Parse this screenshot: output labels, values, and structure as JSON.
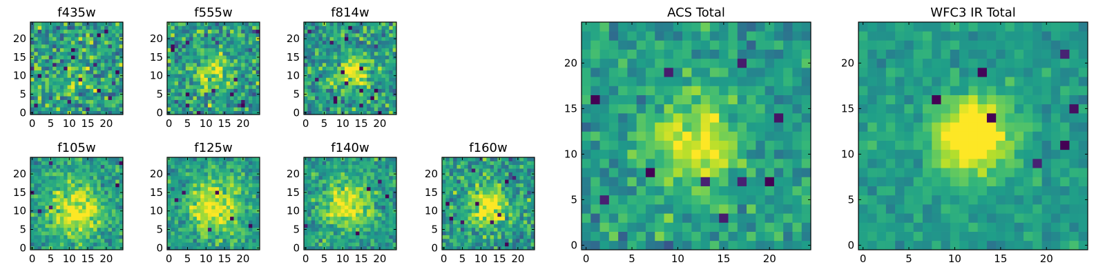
{
  "chart_data": [
    {
      "type": "heatmap",
      "title": "f435w",
      "xticks": [
        0,
        5,
        10,
        15,
        20
      ],
      "yticks": [
        0,
        5,
        10,
        15,
        20
      ],
      "xlim": [
        -0.5,
        24.5
      ],
      "ylim": [
        -0.5,
        24.5
      ],
      "seed": 11,
      "noise": 0.95,
      "blob": {
        "x": 12,
        "y": 11,
        "sigma": 4.5,
        "amp": 0.25
      },
      "dark_dots": 14,
      "colormap": "viridis"
    },
    {
      "type": "heatmap",
      "title": "f555w",
      "xticks": [
        0,
        5,
        10,
        15,
        20
      ],
      "yticks": [
        0,
        5,
        10,
        15,
        20
      ],
      "xlim": [
        -0.5,
        24.5
      ],
      "ylim": [
        -0.5,
        24.5
      ],
      "seed": 23,
      "noise": 0.85,
      "blob": {
        "x": 12,
        "y": 11,
        "sigma": 3.5,
        "amp": 0.7
      },
      "dark_dots": 12,
      "colormap": "viridis"
    },
    {
      "type": "heatmap",
      "title": "f814w",
      "xticks": [
        0,
        5,
        10,
        15,
        20
      ],
      "yticks": [
        0,
        5,
        10,
        15,
        20
      ],
      "xlim": [
        -0.5,
        24.5
      ],
      "ylim": [
        -0.5,
        24.5
      ],
      "seed": 37,
      "noise": 0.8,
      "blob": {
        "x": 13,
        "y": 11,
        "sigma": 3.0,
        "amp": 1.0
      },
      "dark_dots": 16,
      "colormap": "viridis"
    },
    {
      "type": "heatmap",
      "title": "f105w",
      "xticks": [
        0,
        5,
        10,
        15,
        20
      ],
      "yticks": [
        0,
        5,
        10,
        15,
        20
      ],
      "xlim": [
        -0.5,
        24.5
      ],
      "ylim": [
        -0.5,
        24.5
      ],
      "seed": 41,
      "noise": 0.6,
      "blob": {
        "x": 12,
        "y": 10,
        "sigma": 5.0,
        "amp": 1.0
      },
      "dark_dots": 6,
      "colormap": "viridis"
    },
    {
      "type": "heatmap",
      "title": "f125w",
      "xticks": [
        0,
        5,
        10,
        15,
        20
      ],
      "yticks": [
        0,
        5,
        10,
        15,
        20
      ],
      "xlim": [
        -0.5,
        24.5
      ],
      "ylim": [
        -0.5,
        24.5
      ],
      "seed": 53,
      "noise": 0.6,
      "blob": {
        "x": 12,
        "y": 11,
        "sigma": 5.0,
        "amp": 1.0
      },
      "dark_dots": 6,
      "colormap": "viridis"
    },
    {
      "type": "heatmap",
      "title": "f140w",
      "xticks": [
        0,
        5,
        10,
        15,
        20
      ],
      "yticks": [
        0,
        5,
        10,
        15,
        20
      ],
      "xlim": [
        -0.5,
        24.5
      ],
      "ylim": [
        -0.5,
        24.5
      ],
      "seed": 67,
      "noise": 0.6,
      "blob": {
        "x": 11,
        "y": 12,
        "sigma": 4.5,
        "amp": 1.0
      },
      "dark_dots": 5,
      "colormap": "viridis"
    },
    {
      "type": "heatmap",
      "title": "f160w",
      "xticks": [
        0,
        5,
        10,
        15,
        20
      ],
      "yticks": [
        0,
        5,
        10,
        15,
        20
      ],
      "xlim": [
        -0.5,
        24.5
      ],
      "ylim": [
        -0.5,
        24.5
      ],
      "seed": 79,
      "noise": 0.75,
      "blob": {
        "x": 12,
        "y": 11,
        "sigma": 3.5,
        "amp": 1.1
      },
      "dark_dots": 10,
      "colormap": "viridis"
    },
    {
      "type": "heatmap",
      "title": "ACS Total",
      "xticks": [
        0,
        5,
        10,
        15,
        20
      ],
      "yticks": [
        0,
        5,
        10,
        15,
        20
      ],
      "xlim": [
        -0.5,
        24.5
      ],
      "ylim": [
        -0.5,
        24.5
      ],
      "seed": 97,
      "noise": 0.55,
      "blob": {
        "x": 12,
        "y": 11,
        "sigma": 3.2,
        "amp": 1.0
      },
      "dark_dots": 10,
      "colormap": "viridis"
    },
    {
      "type": "heatmap",
      "title": "WFC3 IR Total",
      "xticks": [
        0,
        5,
        10,
        15,
        20
      ],
      "yticks": [
        0,
        5,
        10,
        15,
        20
      ],
      "xlim": [
        -0.5,
        24.5
      ],
      "ylim": [
        -0.5,
        24.5
      ],
      "seed": 101,
      "noise": 0.35,
      "blob": {
        "x": 12,
        "y": 12,
        "sigma": 3.0,
        "amp": 1.4
      },
      "dark_dots": 8,
      "colormap": "viridis"
    }
  ]
}
